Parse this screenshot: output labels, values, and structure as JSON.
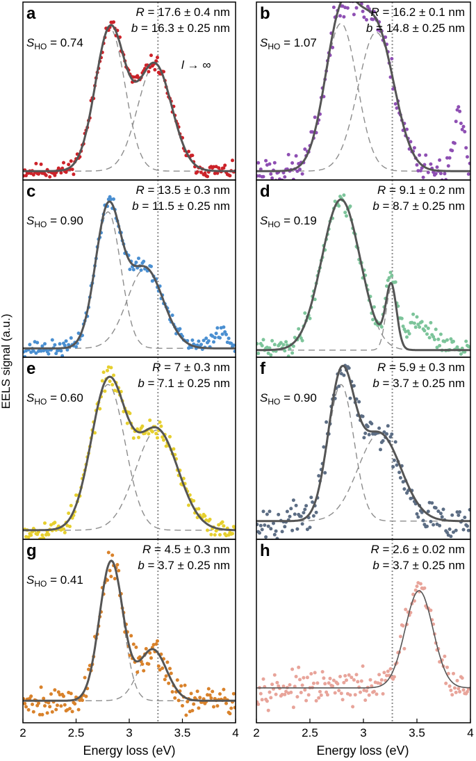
{
  "figure": {
    "ylabel": "EELS signal (a.u.)",
    "xlabel": "Energy loss (eV)",
    "xticks_left": [
      "2",
      "2.5",
      "3",
      "3.5",
      "4"
    ],
    "xticks_right": [
      "2",
      "2.5",
      "3",
      "3.5",
      "4"
    ]
  },
  "colors": {
    "fit": "#555555",
    "components": "#8c8c8c",
    "dotted": "#8c8c8c",
    "frame": "#000000"
  },
  "chart_data": [
    {
      "panel": "a",
      "type": "scatter",
      "x_range": [
        2,
        4
      ],
      "color": "#cc2229",
      "R_text": "17.6 ± 0.4 nm",
      "b_text": "16.3 ± 0.25 nm",
      "S_text": "0.74",
      "annotation": "l → ∞",
      "baseline": 0.05,
      "peaks": [
        {
          "center": 2.82,
          "width": 0.14,
          "amp": 0.8
        },
        {
          "center": 3.24,
          "width": 0.16,
          "amp": 0.6
        }
      ],
      "dotted_line_x": 3.27,
      "noise": 0.03,
      "show_components": true,
      "seed": 11
    },
    {
      "panel": "b",
      "type": "scatter",
      "x_range": [
        2,
        4
      ],
      "color": "#8e4fb3",
      "R_text": "16.2 ± 0.1 nm",
      "b_text": "14.8 ± 0.25 nm",
      "S_text": "1.07",
      "baseline": 0.05,
      "peaks": [
        {
          "center": 2.79,
          "width": 0.15,
          "amp": 0.83
        },
        {
          "center": 3.12,
          "width": 0.17,
          "amp": 0.78
        }
      ],
      "extra_bump": {
        "center": 3.9,
        "width": 0.05,
        "amp": 0.3
      },
      "dotted_line_x": 3.27,
      "noise": 0.06,
      "show_components": true,
      "seed": 23
    },
    {
      "panel": "c",
      "type": "scatter",
      "x_range": [
        2,
        4
      ],
      "color": "#4a8fd1",
      "R_text": "13.5 ± 0.3 nm",
      "b_text": "11.5 ± 0.25 nm",
      "S_text": "0.90",
      "baseline": 0.05,
      "peaks": [
        {
          "center": 2.8,
          "width": 0.12,
          "amp": 0.77
        },
        {
          "center": 3.15,
          "width": 0.17,
          "amp": 0.45
        }
      ],
      "extra_bump": {
        "center": 3.85,
        "width": 0.07,
        "amp": 0.1
      },
      "dotted_line_x": 3.27,
      "noise": 0.03,
      "show_components": true,
      "seed": 37
    },
    {
      "panel": "d",
      "type": "scatter",
      "x_range": [
        2,
        4
      ],
      "color": "#7cc49a",
      "R_text": "9.1 ± 0.2 nm",
      "b_text": "8.7 ± 0.25 nm",
      "S_text": "0.19",
      "baseline": 0.04,
      "peaks": [
        {
          "center": 2.79,
          "width": 0.18,
          "amp": 0.85
        },
        {
          "center": 3.26,
          "width": 0.05,
          "amp": 0.35
        }
      ],
      "extra_bump": {
        "center": 3.5,
        "width": 0.15,
        "amp": 0.15
      },
      "dotted_line_x": 3.27,
      "noise": 0.04,
      "show_components": true,
      "seed": 41
    },
    {
      "panel": "e",
      "type": "scatter",
      "x_range": [
        2,
        4
      ],
      "color": "#e6cf2e",
      "R_text": "7 ± 0.3 nm",
      "b_text": "7.1 ± 0.25 nm",
      "S_text": "0.60",
      "baseline": 0.05,
      "peaks": [
        {
          "center": 2.8,
          "width": 0.16,
          "amp": 0.8
        },
        {
          "center": 3.26,
          "width": 0.2,
          "amp": 0.55
        }
      ],
      "dotted_line_x": 3.27,
      "noise": 0.04,
      "show_components": true,
      "seed": 53
    },
    {
      "panel": "f",
      "type": "scatter",
      "x_range": [
        2,
        4
      ],
      "color": "#5c6d84",
      "R_text": "5.9 ± 0.3 nm",
      "b_text": "3.7 ± 0.25 nm",
      "S_text": "0.90",
      "baseline": 0.1,
      "peaks": [
        {
          "center": 2.79,
          "width": 0.12,
          "amp": 0.75
        },
        {
          "center": 3.15,
          "width": 0.2,
          "amp": 0.48
        }
      ],
      "dotted_line_x": 3.27,
      "noise": 0.07,
      "show_components": true,
      "seed": 67
    },
    {
      "panel": "g",
      "type": "scatter",
      "x_range": [
        2,
        4
      ],
      "color": "#d9822b",
      "R_text": "4.5 ± 0.3 nm",
      "b_text": "3.7 ± 0.25 nm",
      "S_text": "0.41",
      "baseline": 0.12,
      "peaks": [
        {
          "center": 2.83,
          "width": 0.11,
          "amp": 0.76
        },
        {
          "center": 3.22,
          "width": 0.13,
          "amp": 0.28
        }
      ],
      "dotted_line_x": 3.27,
      "noise": 0.06,
      "show_components": true,
      "seed": 79
    },
    {
      "panel": "h",
      "type": "scatter",
      "x_range": [
        2,
        4
      ],
      "color": "#e8a49a",
      "R_text": "2.6 ± 0.02 nm",
      "b_text": "3.7 ± 0.25 nm",
      "baseline": 0.19,
      "peaks": [
        {
          "center": 3.52,
          "width": 0.13,
          "amp": 0.53
        }
      ],
      "dotted_line_x": 3.27,
      "noise": 0.06,
      "show_components": false,
      "seed": 97
    }
  ]
}
